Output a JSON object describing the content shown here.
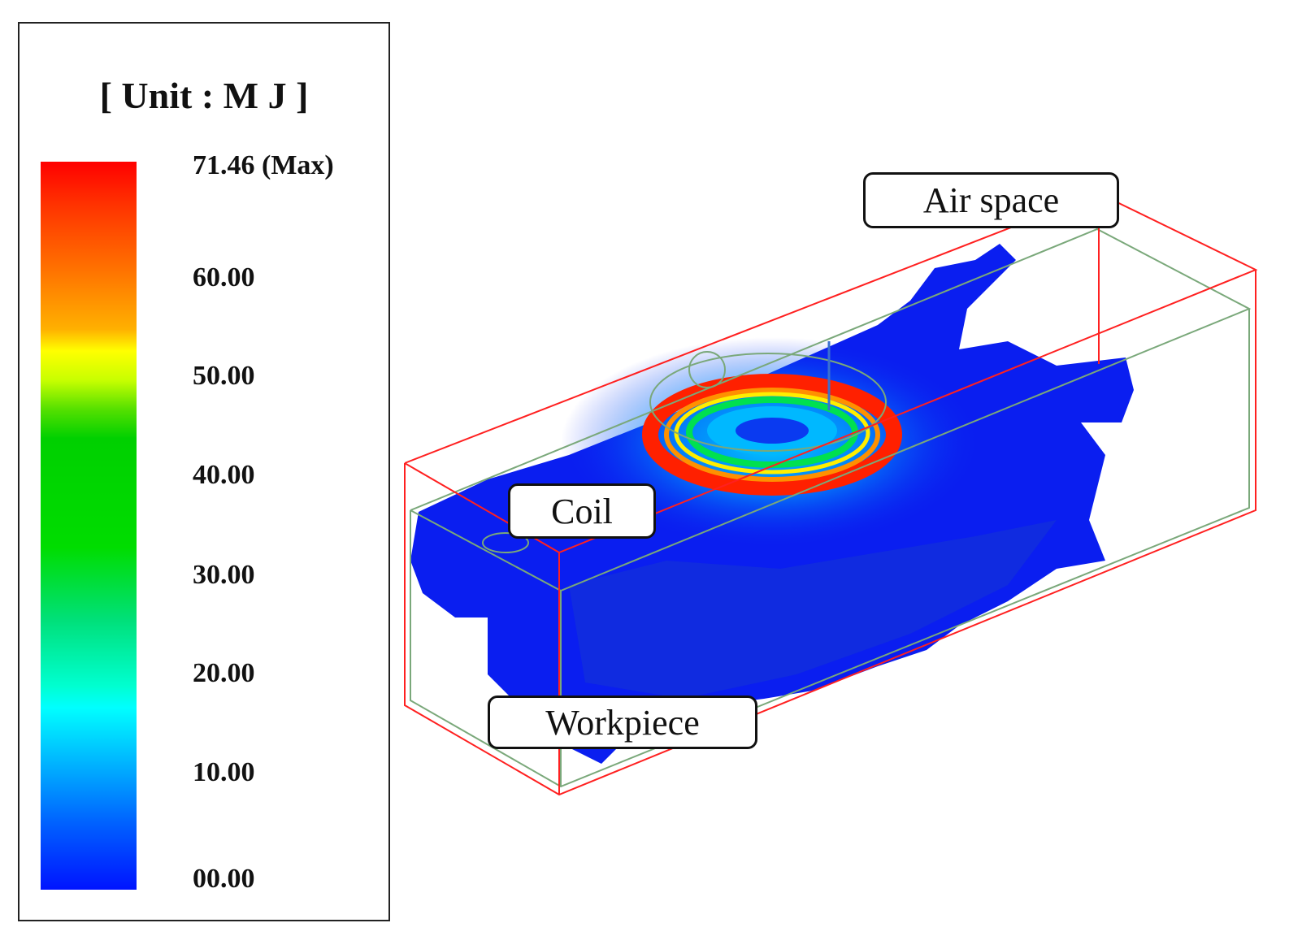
{
  "legend": {
    "title": "[ Unit : M J ]",
    "ticks": [
      {
        "label": "71.46 (Max)",
        "value": 71.46
      },
      {
        "label": "60.00",
        "value": 60
      },
      {
        "label": "50.00",
        "value": 50
      },
      {
        "label": "40.00",
        "value": 40
      },
      {
        "label": "30.00",
        "value": 30
      },
      {
        "label": "20.00",
        "value": 20
      },
      {
        "label": "10.00",
        "value": 10
      },
      {
        "label": "00.00",
        "value": 0
      }
    ],
    "min": 0,
    "max": 71.46,
    "colors": [
      "#ff0000",
      "#ff7300",
      "#ffff00",
      "#00d000",
      "#00ffff",
      "#0060ff",
      "#0014ff"
    ]
  },
  "labels": {
    "air_space": "Air space",
    "coil": "Coil",
    "workpiece": "Workpiece"
  },
  "scene_colors": {
    "air_box": "#ff2020",
    "workpiece_box": "#7aa87a",
    "field_base": "#0a1ef0",
    "ring": "#ff2000"
  }
}
